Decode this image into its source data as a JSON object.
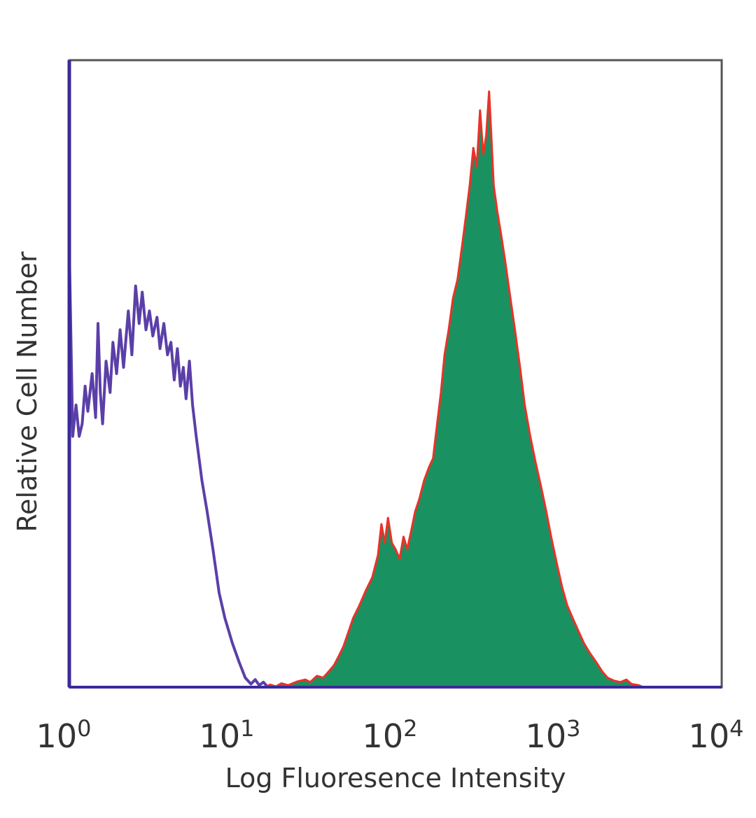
{
  "chart_data": {
    "type": "area",
    "xlabel": "Log Fluoresence Intensity",
    "ylabel": "Relative Cell Number",
    "xscale": "log",
    "xlim": [
      1,
      10000
    ],
    "ylim": [
      0,
      100
    ],
    "grid": false,
    "legend": "none",
    "x_ticks": [
      {
        "base": "10",
        "exp": "0"
      },
      {
        "base": "10",
        "exp": "1"
      },
      {
        "base": "10",
        "exp": "2"
      },
      {
        "base": "10",
        "exp": "3"
      },
      {
        "base": "10",
        "exp": "4"
      }
    ],
    "series": [
      {
        "style": "outline",
        "color": "#5B3FA8",
        "points": [
          [
            1.0,
            70
          ],
          [
            1.05,
            40
          ],
          [
            1.1,
            45
          ],
          [
            1.15,
            40
          ],
          [
            1.2,
            42
          ],
          [
            1.25,
            48
          ],
          [
            1.3,
            44
          ],
          [
            1.38,
            50
          ],
          [
            1.45,
            43
          ],
          [
            1.5,
            58
          ],
          [
            1.55,
            47
          ],
          [
            1.6,
            42
          ],
          [
            1.68,
            52
          ],
          [
            1.78,
            47
          ],
          [
            1.85,
            55
          ],
          [
            1.95,
            50
          ],
          [
            2.05,
            57
          ],
          [
            2.15,
            51
          ],
          [
            2.3,
            60
          ],
          [
            2.42,
            53
          ],
          [
            2.55,
            64
          ],
          [
            2.68,
            58
          ],
          [
            2.8,
            63
          ],
          [
            2.95,
            57
          ],
          [
            3.1,
            60
          ],
          [
            3.25,
            56
          ],
          [
            3.45,
            59
          ],
          [
            3.6,
            54
          ],
          [
            3.8,
            58
          ],
          [
            4.0,
            53
          ],
          [
            4.2,
            55
          ],
          [
            4.4,
            49
          ],
          [
            4.6,
            54
          ],
          [
            4.8,
            48
          ],
          [
            5.0,
            51
          ],
          [
            5.2,
            46
          ],
          [
            5.45,
            52
          ],
          [
            5.7,
            45
          ],
          [
            6.0,
            40
          ],
          [
            6.5,
            33
          ],
          [
            7.0,
            28
          ],
          [
            7.6,
            22
          ],
          [
            8.3,
            15
          ],
          [
            9.0,
            11
          ],
          [
            10.0,
            7
          ],
          [
            11.0,
            4
          ],
          [
            12.0,
            1.5
          ],
          [
            13.0,
            0.5
          ],
          [
            13.8,
            1.2
          ],
          [
            14.6,
            0.3
          ],
          [
            15.5,
            0.8
          ],
          [
            16.5,
            0
          ],
          [
            10000,
            0
          ]
        ]
      },
      {
        "style": "filled",
        "fill": "#1A9160",
        "outline": "#E8332A",
        "points": [
          [
            1.0,
            0
          ],
          [
            16.0,
            0
          ],
          [
            17.0,
            0.4
          ],
          [
            18.5,
            0.1
          ],
          [
            20.0,
            0.6
          ],
          [
            22.0,
            0.3
          ],
          [
            25.0,
            0.9
          ],
          [
            28.0,
            1.2
          ],
          [
            30.0,
            0.8
          ],
          [
            33.0,
            1.8
          ],
          [
            36.0,
            1.5
          ],
          [
            39.0,
            2.5
          ],
          [
            42.0,
            3.5
          ],
          [
            45.0,
            5.0
          ],
          [
            48.0,
            6.5
          ],
          [
            51.0,
            8.5
          ],
          [
            55.0,
            11.0
          ],
          [
            60.0,
            13.0
          ],
          [
            66.0,
            15.5
          ],
          [
            72.0,
            17.5
          ],
          [
            78.0,
            21.0
          ],
          [
            82.0,
            26.0
          ],
          [
            86.0,
            23.0
          ],
          [
            90.0,
            27.0
          ],
          [
            95.0,
            23.0
          ],
          [
            100.0,
            22.0
          ],
          [
            106.0,
            20.5
          ],
          [
            112.0,
            24.0
          ],
          [
            118.0,
            22.0
          ],
          [
            125.0,
            25.0
          ],
          [
            132.0,
            28.0
          ],
          [
            140.0,
            30.0
          ],
          [
            150.0,
            33.0
          ],
          [
            160.0,
            35.0
          ],
          [
            170.0,
            36.5
          ],
          [
            180.0,
            42.0
          ],
          [
            190.0,
            47.0
          ],
          [
            200.0,
            53.0
          ],
          [
            212.0,
            57.0
          ],
          [
            225.0,
            62.0
          ],
          [
            240.0,
            65.0
          ],
          [
            255.0,
            70.0
          ],
          [
            270.0,
            75.0
          ],
          [
            285.0,
            80.0
          ],
          [
            300.0,
            86.0
          ],
          [
            315.0,
            83.0
          ],
          [
            330.0,
            92.0
          ],
          [
            345.0,
            85.0
          ],
          [
            360.0,
            88.0
          ],
          [
            375.0,
            95.0
          ],
          [
            385.0,
            89.0
          ],
          [
            400.0,
            80.0
          ],
          [
            420.0,
            76.0
          ],
          [
            445.0,
            72.0
          ],
          [
            470.0,
            68.0
          ],
          [
            500.0,
            63.0
          ],
          [
            540.0,
            57.0
          ],
          [
            580.0,
            51.0
          ],
          [
            620.0,
            45.0
          ],
          [
            670.0,
            40.0
          ],
          [
            720.0,
            36.0
          ],
          [
            780.0,
            32.0
          ],
          [
            840.0,
            28.0
          ],
          [
            900.0,
            24.0
          ],
          [
            970.0,
            20.0
          ],
          [
            1050.0,
            16.0
          ],
          [
            1130.0,
            13.0
          ],
          [
            1220.0,
            11.0
          ],
          [
            1320.0,
            9.0
          ],
          [
            1430.0,
            7.0
          ],
          [
            1550.0,
            5.5
          ],
          [
            1700.0,
            4.0
          ],
          [
            1850.0,
            2.5
          ],
          [
            2000.0,
            1.5
          ],
          [
            2200.0,
            1.0
          ],
          [
            2400.0,
            0.8
          ],
          [
            2600.0,
            1.2
          ],
          [
            2800.0,
            0.5
          ],
          [
            3100.0,
            0.3
          ],
          [
            3300.0,
            0
          ],
          [
            10000,
            0
          ]
        ]
      }
    ]
  }
}
